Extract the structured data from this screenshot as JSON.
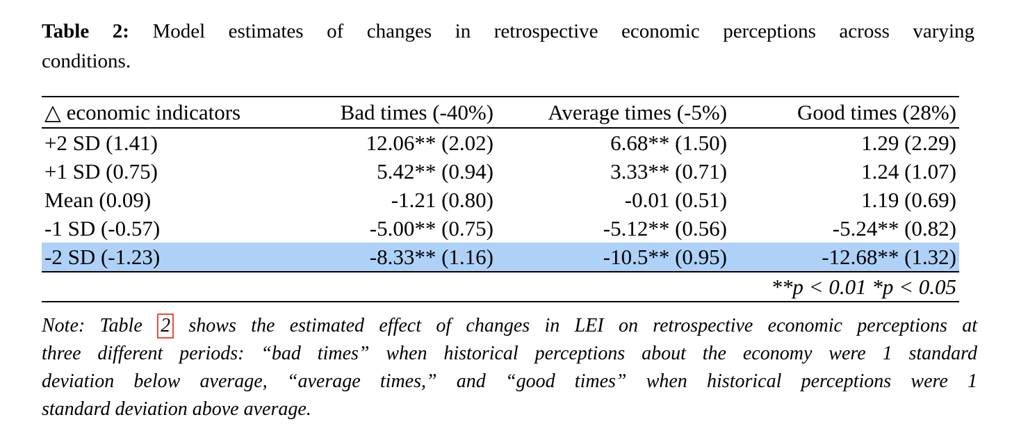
{
  "caption": {
    "label": "Table 2:",
    "line1_rest": "Model estimates of changes in retrospective economic perceptions across varying",
    "line2": "conditions."
  },
  "table": {
    "columns": [
      "△ economic indicators",
      "Bad times (-40%)",
      "Average times (-5%)",
      "Good times (28%)"
    ],
    "rows": [
      {
        "cells": [
          "+2 SD (1.41)",
          "12.06** (2.02)",
          "6.68** (1.50)",
          "1.29 (2.29)"
        ],
        "highlighted": false
      },
      {
        "cells": [
          "+1 SD (0.75)",
          "5.42** (0.94)",
          "3.33** (0.71)",
          "1.24 (1.07)"
        ],
        "highlighted": false
      },
      {
        "cells": [
          "Mean (0.09)",
          "-1.21 (0.80)",
          "-0.01 (0.51)",
          "1.19 (0.69)"
        ],
        "highlighted": false
      },
      {
        "cells": [
          "-1 SD (-0.57)",
          "-5.00** (0.75)",
          "-5.12** (0.56)",
          "-5.24** (0.82)"
        ],
        "highlighted": false
      },
      {
        "cells": [
          "-2 SD (-1.23)",
          "-8.33** (1.16)",
          "-10.5** (0.95)",
          "-12.68** (1.32)"
        ],
        "highlighted": true
      }
    ],
    "significance_note": "**p < 0.01  *p < 0.05",
    "highlight_color": "#aed1f7"
  },
  "note": {
    "line1_pre": "Note: Table",
    "link_number": "2",
    "line1_post": "shows the estimated effect of changes in LEI on retrospective economic perceptions at",
    "lines": [
      "three different periods: “bad times” when historical perceptions about the economy were 1 standard",
      "deviation below average, “average times,” and “good times” when historical perceptions were 1",
      "standard deviation above average."
    ],
    "link_border_color": "#f04a42"
  }
}
